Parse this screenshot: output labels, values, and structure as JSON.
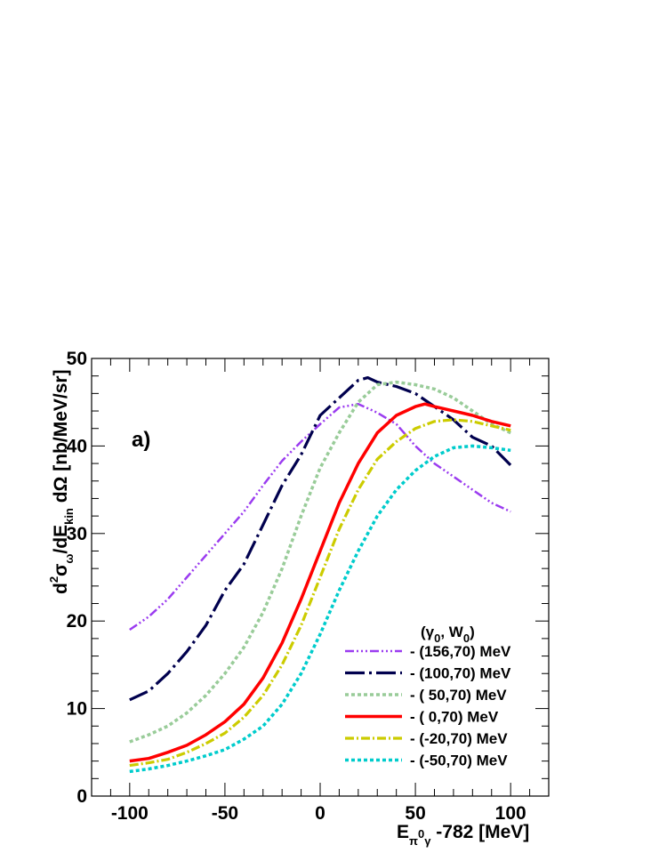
{
  "chart_data": {
    "type": "line",
    "annotation": "a)",
    "xlim": [
      -120,
      120
    ],
    "ylim": [
      0,
      50
    ],
    "xticks": [
      -100,
      -50,
      0,
      50,
      100
    ],
    "yticks": [
      0,
      10,
      20,
      30,
      40,
      50
    ],
    "legend_title_parts": [
      "(γ",
      "0",
      ", W",
      "0",
      ")"
    ],
    "legend_placement": "bottom-right",
    "grid": false,
    "series": [
      {
        "name": "- (156,70) MeV",
        "color": "#9B3CF0",
        "dash": "10,3,2,3,2,3,2,3",
        "width": 2.5,
        "x": [
          -100,
          -90,
          -80,
          -70,
          -60,
          -50,
          -40,
          -30,
          -20,
          -10,
          0,
          10,
          20,
          30,
          40,
          50,
          60,
          70,
          80,
          90,
          100
        ],
        "y": [
          19,
          20.5,
          22.5,
          25,
          27.5,
          30,
          32.5,
          35.5,
          38.3,
          40.5,
          42.5,
          44.4,
          44.8,
          43.8,
          42.5,
          40,
          38,
          36.5,
          35,
          33.5,
          32.5
        ]
      },
      {
        "name": "- (100,70) MeV",
        "color": "#00004E",
        "dash": "22,5,3,5",
        "width": 3.2,
        "x": [
          -100,
          -90,
          -80,
          -70,
          -60,
          -50,
          -40,
          -30,
          -20,
          -10,
          0,
          10,
          20,
          25,
          30,
          40,
          50,
          60,
          70,
          80,
          90,
          100
        ],
        "y": [
          11,
          12,
          14,
          16.5,
          19.5,
          23.5,
          26.5,
          31,
          35.5,
          39,
          43.5,
          45.5,
          47.5,
          47.8,
          47.3,
          46.8,
          46,
          44.5,
          43,
          41,
          40,
          37.8
        ]
      },
      {
        "name": "- ( 50,70) MeV",
        "color": "#99CC99",
        "dash": "4,3",
        "width": 3.5,
        "x": [
          -100,
          -90,
          -80,
          -70,
          -60,
          -50,
          -40,
          -30,
          -20,
          -10,
          0,
          10,
          20,
          30,
          40,
          50,
          60,
          70,
          80,
          90,
          100
        ],
        "y": [
          6.2,
          7,
          8,
          9.5,
          11.5,
          14,
          17,
          21,
          26,
          32,
          37.5,
          41.5,
          45,
          47,
          47.3,
          47,
          46.5,
          45.5,
          44,
          42.5,
          41.5
        ]
      },
      {
        "name": "- (  0,70) MeV",
        "color": "#FF0000",
        "dash": "",
        "width": 3.5,
        "x": [
          -100,
          -90,
          -80,
          -70,
          -60,
          -50,
          -40,
          -30,
          -20,
          -10,
          0,
          10,
          20,
          30,
          40,
          50,
          55,
          60,
          70,
          80,
          90,
          100
        ],
        "y": [
          4,
          4.3,
          5,
          5.8,
          7,
          8.5,
          10.5,
          13.5,
          17.5,
          22.5,
          28,
          33.5,
          38,
          41.5,
          43.5,
          44.5,
          44.8,
          44.5,
          44,
          43.5,
          42.8,
          42.3
        ]
      },
      {
        "name": "- (-20,70) MeV",
        "color": "#CCCC00",
        "dash": "10,3,2,3",
        "width": 3.2,
        "x": [
          -100,
          -90,
          -80,
          -70,
          -60,
          -50,
          -40,
          -30,
          -20,
          -10,
          0,
          10,
          20,
          30,
          40,
          50,
          60,
          70,
          80,
          90,
          100
        ],
        "y": [
          3.5,
          3.8,
          4.2,
          5,
          6,
          7.2,
          9,
          11.5,
          15,
          19.5,
          25,
          30.5,
          35,
          38.5,
          40.5,
          42,
          42.8,
          43,
          42.8,
          42.3,
          41.8
        ]
      },
      {
        "name": "- (-50,70) MeV",
        "color": "#00CCCC",
        "dash": "4,3",
        "width": 3.5,
        "x": [
          -100,
          -90,
          -80,
          -70,
          -60,
          -50,
          -40,
          -30,
          -20,
          -10,
          0,
          10,
          20,
          30,
          40,
          50,
          60,
          70,
          80,
          90,
          100
        ],
        "y": [
          2.8,
          3.1,
          3.5,
          4,
          4.6,
          5.3,
          6.5,
          8,
          10.5,
          14,
          18.5,
          23.5,
          28,
          32,
          35,
          37.2,
          38.8,
          39.8,
          40,
          39.8,
          39.5
        ]
      }
    ]
  }
}
